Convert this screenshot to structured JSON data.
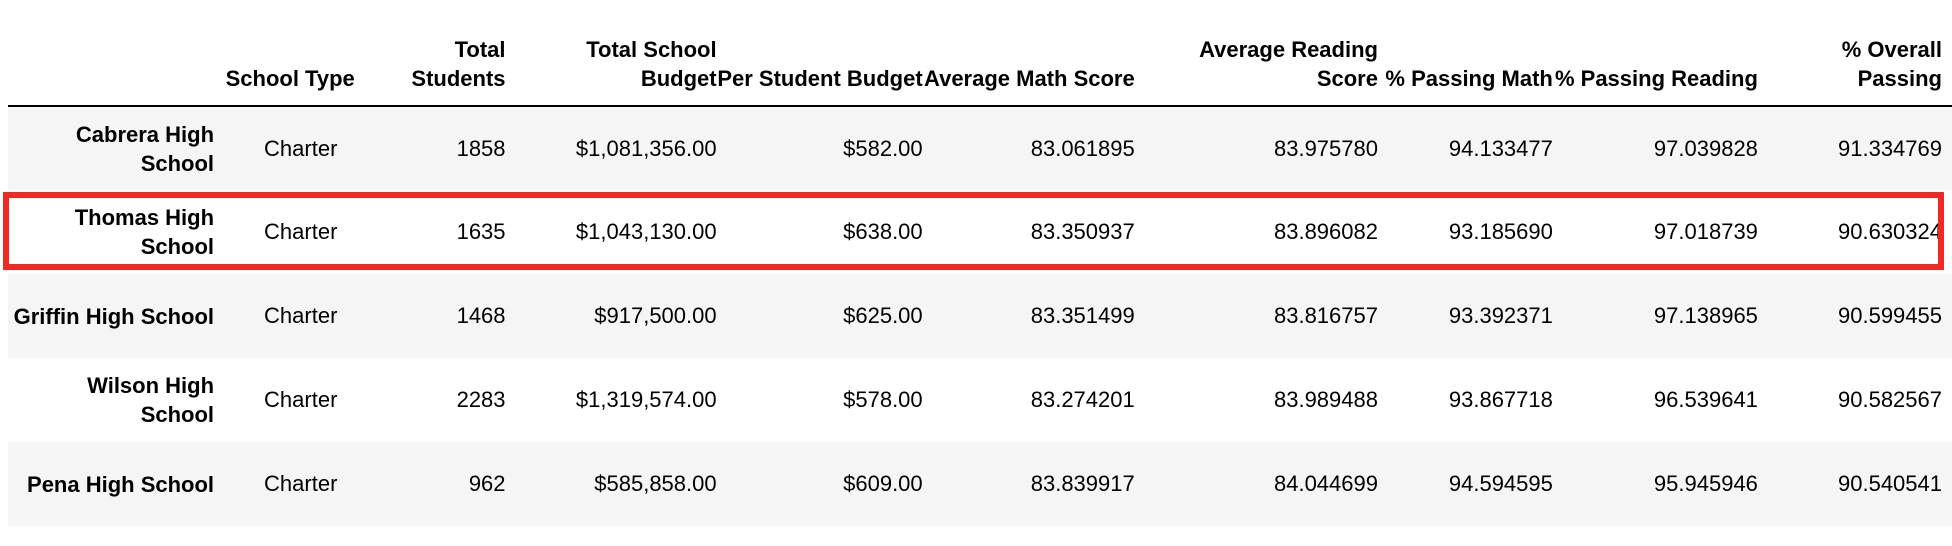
{
  "table": {
    "columns": [
      "",
      "School Type",
      "Total Students",
      "Total School Budget",
      "Per Student Budget",
      "Average Math Score",
      "Average Reading Score",
      "% Passing Math",
      "% Passing Reading",
      "% Overall Passing"
    ],
    "rows": [
      {
        "school": "Cabrera High School",
        "type": "Charter",
        "total_students": "1858",
        "total_budget": "$1,081,356.00",
        "per_student_budget": "$582.00",
        "avg_math": "83.061895",
        "avg_reading": "83.975780",
        "pct_math": "94.133477",
        "pct_reading": "97.039828",
        "pct_overall": "91.334769"
      },
      {
        "school": "Thomas High School",
        "type": "Charter",
        "total_students": "1635",
        "total_budget": "$1,043,130.00",
        "per_student_budget": "$638.00",
        "avg_math": "83.350937",
        "avg_reading": "83.896082",
        "pct_math": "93.185690",
        "pct_reading": "97.018739",
        "pct_overall": "90.630324"
      },
      {
        "school": "Griffin High School",
        "type": "Charter",
        "total_students": "1468",
        "total_budget": "$917,500.00",
        "per_student_budget": "$625.00",
        "avg_math": "83.351499",
        "avg_reading": "83.816757",
        "pct_math": "93.392371",
        "pct_reading": "97.138965",
        "pct_overall": "90.599455"
      },
      {
        "school": "Wilson High School",
        "type": "Charter",
        "total_students": "2283",
        "total_budget": "$1,319,574.00",
        "per_student_budget": "$578.00",
        "avg_math": "83.274201",
        "avg_reading": "83.989488",
        "pct_math": "93.867718",
        "pct_reading": "96.539641",
        "pct_overall": "90.582567"
      },
      {
        "school": "Pena High School",
        "type": "Charter",
        "total_students": "962",
        "total_budget": "$585,858.00",
        "per_student_budget": "$609.00",
        "avg_math": "83.839917",
        "avg_reading": "84.044699",
        "pct_math": "94.594595",
        "pct_reading": "95.945946",
        "pct_overall": "90.540541"
      }
    ]
  },
  "highlight": {
    "row_index": 1,
    "color": "#f02a22"
  },
  "colors": {
    "stripe": "#f5f5f5",
    "text": "#000000",
    "header_rule": "#000000"
  }
}
